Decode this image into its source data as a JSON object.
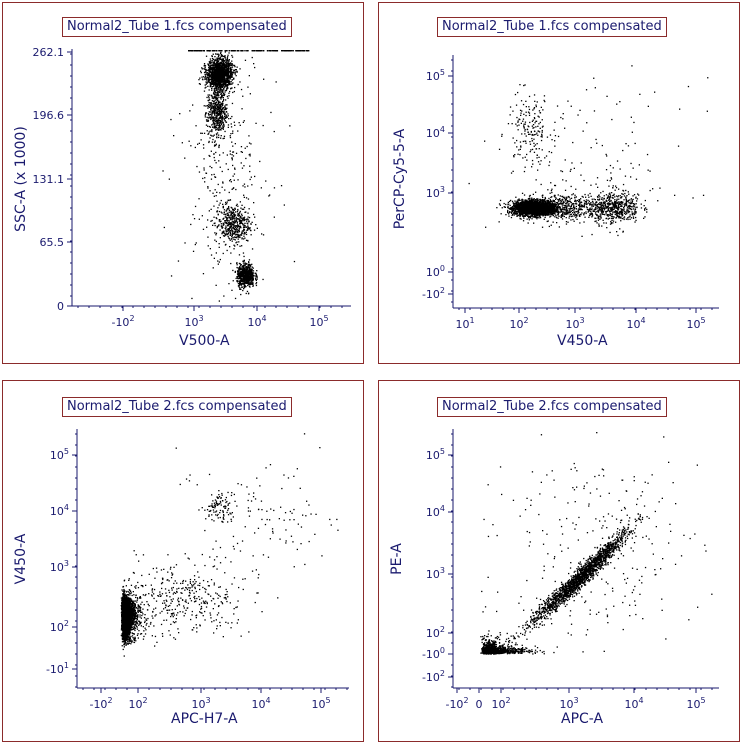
{
  "chart_data": [
    {
      "type": "scatter",
      "title": "Normal2_Tube 1.fcs compensated",
      "xlabel": "V500-A",
      "ylabel": "SSC-A (x 1000)",
      "x_scale": "biexponential",
      "y_scale": "linear",
      "x_ticks": [
        "-10^2",
        "10^3",
        "10^4",
        "10^5"
      ],
      "y_ticks": [
        "0",
        "65.5",
        "131.1",
        "196.6",
        "262.1"
      ],
      "ylim": [
        0,
        262.1
      ],
      "populations": [
        {
          "name": "",
          "x": 2500,
          "y": 240,
          "sx": 0.1,
          "sy": 8,
          "n": 1400
        },
        {
          "name": "",
          "x": 2300,
          "y": 200,
          "sx": 0.08,
          "sy": 14,
          "n": 500
        },
        {
          "name": "",
          "x": 4000,
          "y": 85,
          "sx": 0.14,
          "sy": 10,
          "n": 450
        },
        {
          "name": "",
          "x": 6500,
          "y": 32,
          "sx": 0.07,
          "sy": 6,
          "n": 650
        },
        {
          "name": "",
          "x": 3000,
          "y": 150,
          "sx": 0.35,
          "sy": 60,
          "n": 300
        }
      ]
    },
    {
      "type": "scatter",
      "title": "Normal2_Tube 1.fcs compensated",
      "xlabel": "V450-A",
      "ylabel": "PerCP-Cy5-5-A",
      "x_scale": "log",
      "y_scale": "biexponential",
      "x_ticks": [
        "10^1",
        "10^2",
        "10^3",
        "10^4",
        "10^5"
      ],
      "y_ticks": [
        "-10^2",
        "10^0",
        "10^3",
        "10^4",
        "10^5"
      ],
      "populations": [
        {
          "name": "",
          "x": 180,
          "y": 280,
          "sx": 0.18,
          "sy": 0.14,
          "n": 2600
        },
        {
          "name": "",
          "x": 600,
          "y": 300,
          "sx": 0.35,
          "sy": 0.25,
          "n": 500
        },
        {
          "name": "",
          "x": 4500,
          "y": 300,
          "sx": 0.2,
          "sy": 0.3,
          "n": 500
        },
        {
          "name": "",
          "x": 150,
          "y": 12000,
          "sx": 0.2,
          "sy": 0.3,
          "n": 180
        },
        {
          "name": "",
          "x": 2000,
          "y": 2000,
          "sx": 0.8,
          "sy": 0.8,
          "n": 150
        }
      ]
    },
    {
      "type": "scatter",
      "title": "Normal2_Tube 2.fcs compensated",
      "xlabel": "APC-H7-A",
      "ylabel": "V450-A",
      "x_scale": "biexponential",
      "y_scale": "biexponential",
      "x_ticks": [
        "-10^2",
        "10^2",
        "10^3",
        "10^4",
        "10^5"
      ],
      "y_ticks": [
        "-10^1",
        "10^2",
        "10^3",
        "10^4",
        "10^5"
      ],
      "populations": [
        {
          "name": "",
          "x": 30,
          "y": 150,
          "sx": 0.22,
          "sy": 0.16,
          "n": 3200
        },
        {
          "name": "",
          "x": 2000,
          "y": 12000,
          "sx": 0.1,
          "sy": 0.12,
          "n": 90
        },
        {
          "name": "",
          "x": 500,
          "y": 300,
          "sx": 0.5,
          "sy": 0.3,
          "n": 400
        },
        {
          "name": "",
          "x": 10000,
          "y": 8000,
          "sx": 0.7,
          "sy": 0.5,
          "n": 120
        }
      ]
    },
    {
      "type": "scatter",
      "title": "Normal2_Tube 2.fcs compensated",
      "xlabel": "APC-A",
      "ylabel": "PE-A",
      "x_scale": "biexponential",
      "y_scale": "biexponential",
      "x_ticks": [
        "-10^2",
        "0",
        "10^2",
        "10^3",
        "10^4",
        "10^5"
      ],
      "y_ticks": [
        "-10^2",
        "-10^0",
        "10^2",
        "10^3",
        "10^4",
        "10^5"
      ],
      "populations": [
        {
          "name": "",
          "x": 60,
          "y": 20,
          "sx": 0.3,
          "sy": 0.3,
          "n": 900
        },
        {
          "name": "",
          "x": 1500,
          "y": 900,
          "sx": 0.35,
          "sy": 0.35,
          "n": 1800,
          "diagonal": true
        },
        {
          "name": "",
          "x": 3000,
          "y": 3000,
          "sx": 0.8,
          "sy": 0.8,
          "n": 250
        }
      ]
    }
  ]
}
